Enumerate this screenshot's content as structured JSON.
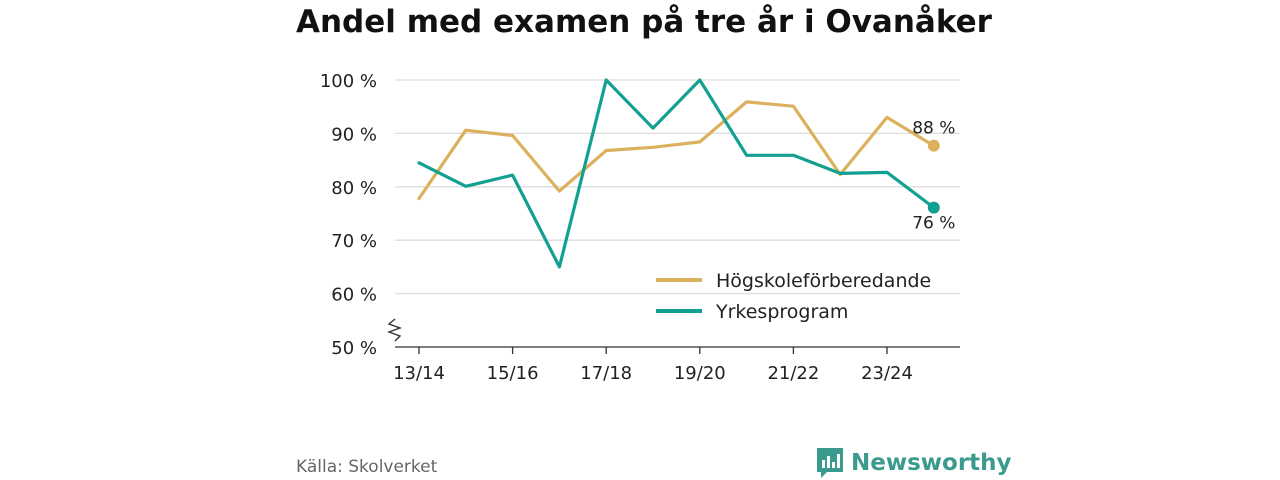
{
  "title": "Andel med examen på tre år i Ovanåker",
  "source": "Källa: Skolverket",
  "brand": {
    "name": "Newsworthy",
    "icon": "newsworthy-logo-icon"
  },
  "colors": {
    "hogskole": "#dcb15e",
    "yrkes": "#12a092",
    "grid": "#dddddd",
    "axis": "#333333",
    "text": "#222222"
  },
  "chart_data": {
    "type": "line",
    "title": "Andel med examen på tre år i Ovanåker",
    "x": [
      "13/14",
      "14/15",
      "15/16",
      "16/17",
      "17/18",
      "18/19",
      "19/20",
      "20/21",
      "21/22",
      "22/23",
      "23/24",
      "24/25"
    ],
    "xticks": [
      "13/14",
      "15/16",
      "17/18",
      "19/20",
      "21/22",
      "23/24"
    ],
    "yticks": [
      "50 %",
      "60 %",
      "70 %",
      "80 %",
      "90 %",
      "100 %"
    ],
    "ylim": [
      50,
      100
    ],
    "series": [
      {
        "name": "Högskoleförberedande",
        "color": "#dcb15e",
        "values": [
          77.8,
          90.6,
          89.6,
          79.2,
          86.8,
          87.4,
          88.4,
          95.9,
          95.1,
          82.3,
          93.0,
          87.7
        ],
        "end_label": "88 %"
      },
      {
        "name": "Yrkesprogram",
        "color": "#12a092",
        "values": [
          84.5,
          80.1,
          82.2,
          65.0,
          100.0,
          91.0,
          100.0,
          85.9,
          85.9,
          82.5,
          82.7,
          76.1
        ],
        "end_label": "76 %"
      }
    ],
    "legend": "bottom-right",
    "grid": true
  }
}
